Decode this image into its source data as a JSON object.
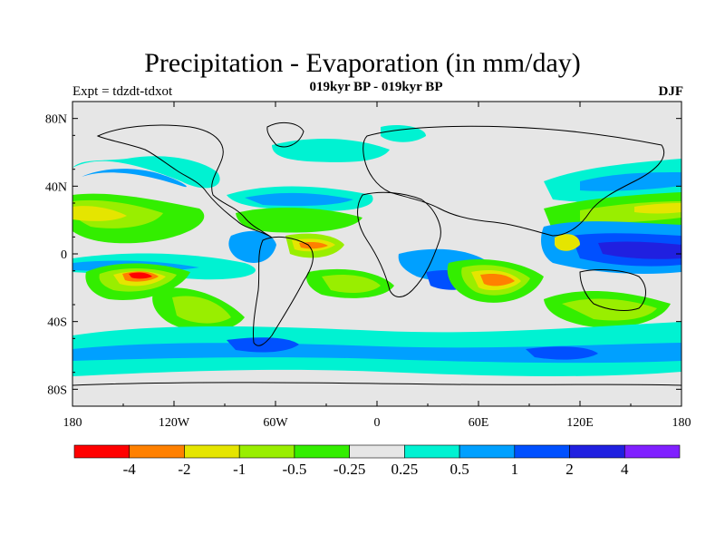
{
  "title": "Precipitation - Evaporation (in mm/day)",
  "subtitle": "019kyr BP - 019kyr BP",
  "left_label": "Expt = tdzdt-tdxot",
  "right_label": "DJF",
  "axes": {
    "lat_ticks": [
      "80N",
      "40N",
      "0",
      "40S",
      "80S"
    ],
    "lon_ticks": [
      "180",
      "120W",
      "60W",
      "0",
      "60E",
      "120E",
      "180"
    ]
  },
  "colorbar": {
    "colors": [
      "#ff0000",
      "#ff8000",
      "#e5e500",
      "#99ee00",
      "#33ee00",
      "#e6e6e6",
      "#00f2d2",
      "#00a0ff",
      "#0050ff",
      "#2020e0",
      "#8020ff"
    ],
    "labels": [
      "-4",
      "-2",
      "-1",
      "-0.5",
      "-0.25",
      "0.25",
      "0.5",
      "1",
      "2",
      "4"
    ]
  },
  "colors": {
    "background": "#e6e6e6",
    "coast": "#000000"
  }
}
